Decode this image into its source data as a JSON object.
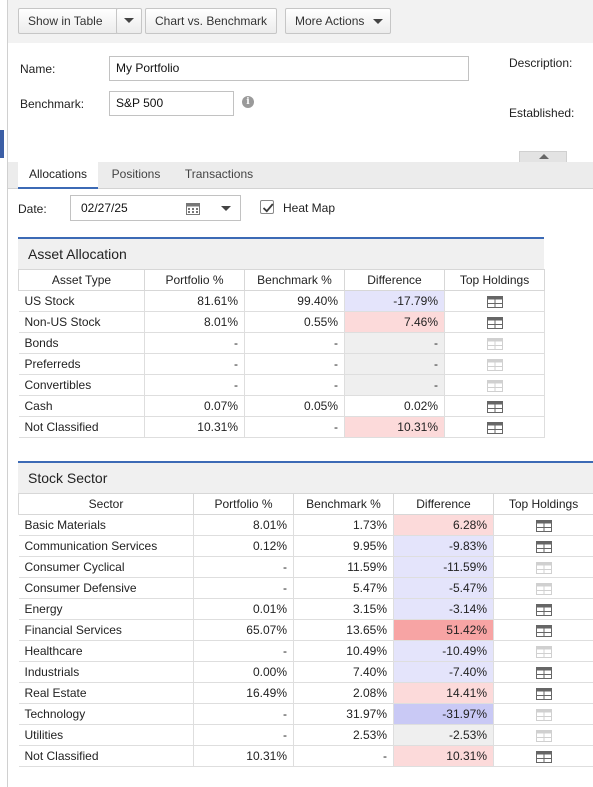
{
  "toolbar": {
    "show_in_table": "Show in Table",
    "chart_vs_benchmark": "Chart vs. Benchmark",
    "more_actions": "More Actions"
  },
  "form": {
    "name_label": "Name:",
    "name_value": "My Portfolio",
    "benchmark_label": "Benchmark:",
    "benchmark_value": "S&P 500",
    "description_label": "Description:",
    "established_label": "Established:"
  },
  "tabs": [
    {
      "label": "Allocations",
      "active": true
    },
    {
      "label": "Positions",
      "active": false
    },
    {
      "label": "Transactions",
      "active": false
    }
  ],
  "date": {
    "label": "Date:",
    "value": "02/27/25"
  },
  "heat_map": {
    "label": "Heat Map",
    "checked": true
  },
  "colors": {
    "accent": "#3c6ab5",
    "negative_light": "#e4e4fb",
    "negative_dark": "#c9c9f5",
    "positive_light": "#fcdada",
    "positive_dark": "#f7a4a4",
    "neutral": "#efefef",
    "icon_active": "#666666",
    "icon_inactive": "#d0d0d0"
  },
  "asset_allocation": {
    "title": "Asset Allocation",
    "columns": [
      "Asset Type",
      "Portfolio %",
      "Benchmark %",
      "Difference",
      "Top Holdings"
    ],
    "rows": [
      {
        "name": "US Stock",
        "portfolio": "81.61%",
        "benchmark": "99.40%",
        "difference": "-17.79%",
        "tone": "neg1",
        "holdings": true
      },
      {
        "name": "Non-US Stock",
        "portfolio": "8.01%",
        "benchmark": "0.55%",
        "difference": "7.46%",
        "tone": "pos1",
        "holdings": true
      },
      {
        "name": "Bonds",
        "portfolio": "-",
        "benchmark": "-",
        "difference": "-",
        "tone": "neutral",
        "holdings": false
      },
      {
        "name": "Preferreds",
        "portfolio": "-",
        "benchmark": "-",
        "difference": "-",
        "tone": "neutral",
        "holdings": false
      },
      {
        "name": "Convertibles",
        "portfolio": "-",
        "benchmark": "-",
        "difference": "-",
        "tone": "neutral",
        "holdings": false
      },
      {
        "name": "Cash",
        "portfolio": "0.07%",
        "benchmark": "0.05%",
        "difference": "0.02%",
        "tone": "none",
        "holdings": true
      },
      {
        "name": "Not Classified",
        "portfolio": "10.31%",
        "benchmark": "-",
        "difference": "10.31%",
        "tone": "pos1",
        "holdings": true
      }
    ]
  },
  "stock_sector": {
    "title": "Stock Sector",
    "columns": [
      "Sector",
      "Portfolio %",
      "Benchmark %",
      "Difference",
      "Top Holdings"
    ],
    "rows": [
      {
        "name": "Basic Materials",
        "portfolio": "8.01%",
        "benchmark": "1.73%",
        "difference": "6.28%",
        "tone": "pos1",
        "holdings": true
      },
      {
        "name": "Communication Services",
        "portfolio": "0.12%",
        "benchmark": "9.95%",
        "difference": "-9.83%",
        "tone": "neg1",
        "holdings": true
      },
      {
        "name": "Consumer Cyclical",
        "portfolio": "-",
        "benchmark": "11.59%",
        "difference": "-11.59%",
        "tone": "neg1",
        "holdings": false
      },
      {
        "name": "Consumer Defensive",
        "portfolio": "-",
        "benchmark": "5.47%",
        "difference": "-5.47%",
        "tone": "neg1",
        "holdings": false
      },
      {
        "name": "Energy",
        "portfolio": "0.01%",
        "benchmark": "3.15%",
        "difference": "-3.14%",
        "tone": "neg1",
        "holdings": true
      },
      {
        "name": "Financial Services",
        "portfolio": "65.07%",
        "benchmark": "13.65%",
        "difference": "51.42%",
        "tone": "pos2",
        "holdings": true
      },
      {
        "name": "Healthcare",
        "portfolio": "-",
        "benchmark": "10.49%",
        "difference": "-10.49%",
        "tone": "neg1",
        "holdings": false
      },
      {
        "name": "Industrials",
        "portfolio": "0.00%",
        "benchmark": "7.40%",
        "difference": "-7.40%",
        "tone": "neg1",
        "holdings": true
      },
      {
        "name": "Real Estate",
        "portfolio": "16.49%",
        "benchmark": "2.08%",
        "difference": "14.41%",
        "tone": "pos1",
        "holdings": true
      },
      {
        "name": "Technology",
        "portfolio": "-",
        "benchmark": "31.97%",
        "difference": "-31.97%",
        "tone": "neg2",
        "holdings": false
      },
      {
        "name": "Utilities",
        "portfolio": "-",
        "benchmark": "2.53%",
        "difference": "-2.53%",
        "tone": "neutral",
        "holdings": false
      },
      {
        "name": "Not Classified",
        "portfolio": "10.31%",
        "benchmark": "-",
        "difference": "10.31%",
        "tone": "pos1",
        "holdings": true
      }
    ]
  }
}
